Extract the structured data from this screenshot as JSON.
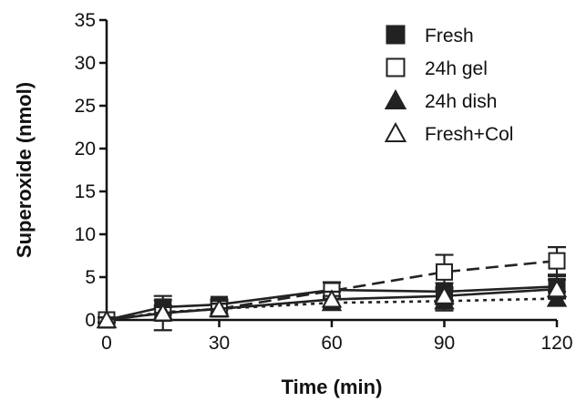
{
  "chart_data": {
    "type": "line",
    "xlabel": "Time (min)",
    "ylabel": "Superoxide (nmol)",
    "x": [
      0,
      15,
      30,
      60,
      90,
      120
    ],
    "xlim": [
      0,
      120
    ],
    "ylim": [
      0,
      35
    ],
    "xticks": [
      0,
      30,
      60,
      90,
      120
    ],
    "yticks": [
      0,
      5,
      10,
      15,
      20,
      25,
      30,
      35
    ],
    "grid": false,
    "legend_position": "top-right",
    "series": [
      {
        "name": "Fresh",
        "marker": "filled-square",
        "line_style": "solid",
        "values": [
          0,
          1.5,
          1.8,
          3.5,
          3.3,
          3.9
        ],
        "errors": [
          0.3,
          0.8,
          0.6,
          0.9,
          1.0,
          1.2
        ]
      },
      {
        "name": "24h gel",
        "marker": "open-square",
        "line_style": "dashed",
        "values": [
          0,
          0.8,
          1.3,
          3.4,
          5.6,
          6.9
        ],
        "errors": [
          0.3,
          2.0,
          0.9,
          1.0,
          2.0,
          1.6
        ]
      },
      {
        "name": "24h dish",
        "marker": "filled-triangle",
        "line_style": "dotted",
        "values": [
          0,
          0.9,
          1.3,
          2.0,
          2.2,
          2.5
        ],
        "errors": [
          0.3,
          0.8,
          0.6,
          0.8,
          1.1,
          0.8
        ]
      },
      {
        "name": "Fresh+Col",
        "marker": "open-triangle",
        "line_style": "solid",
        "values": [
          0,
          0.8,
          1.3,
          2.4,
          2.8,
          3.6
        ],
        "errors": [
          0.3,
          0.7,
          0.6,
          0.9,
          1.0,
          1.1
        ]
      }
    ]
  }
}
